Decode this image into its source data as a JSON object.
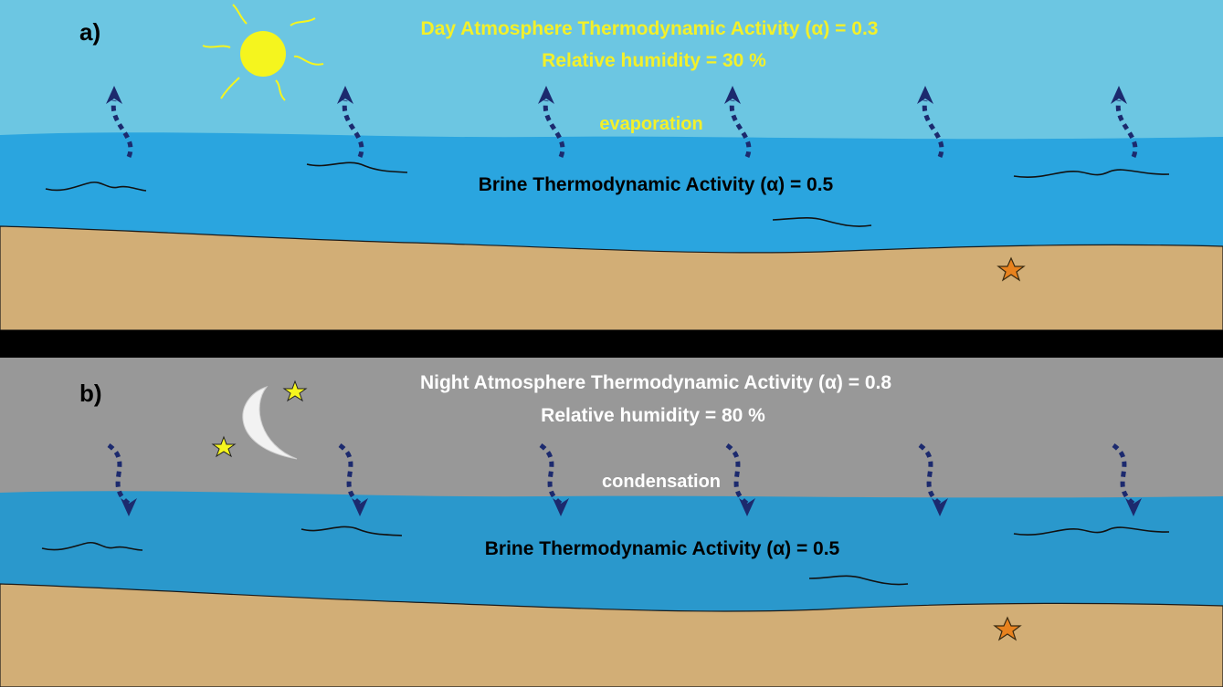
{
  "panel_a": {
    "label": "a)",
    "atmosphere_title": "Day Atmosphere Thermodynamic Activity (α) = 0.3",
    "humidity": "Relative humidity = 30 %",
    "process": "evaporation",
    "brine": "Brine Thermodynamic Activity (α) = 0.5",
    "icons": [
      "sun-icon",
      "starfish-icon"
    ]
  },
  "panel_b": {
    "label": "b)",
    "atmosphere_title": "Night Atmosphere Thermodynamic Activity (α) = 0.8",
    "humidity": "Relative humidity = 80 %",
    "process": "condensation",
    "brine": "Brine Thermodynamic Activity (α) = 0.5",
    "icons": [
      "moon-icon",
      "star-icon",
      "star-icon",
      "starfish-icon"
    ]
  },
  "colors": {
    "day_sky": "#6cc6e2",
    "night_sky": "#989898",
    "water": "#2aa5df",
    "sand": "#d2ae76",
    "arrow": "#1c2a6e",
    "day_text": "#f3f02a",
    "night_text": "#ffffff",
    "sun": "#f5f51e",
    "starfish": "#e8821e",
    "divider": "#000000"
  }
}
